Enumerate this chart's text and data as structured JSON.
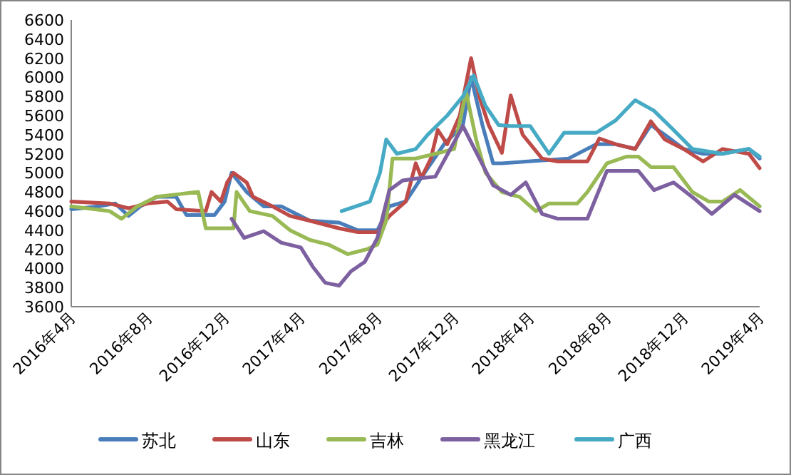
{
  "chart_data": {
    "type": "line",
    "legend": "bottom",
    "grid": false,
    "xlim": [
      "2016-04",
      "2019-04"
    ],
    "xticks": [
      {
        "value": "2016-04",
        "label": "2016年4月"
      },
      {
        "value": "2016-08",
        "label": "2016年8月"
      },
      {
        "value": "2016-12",
        "label": "2016年12月"
      },
      {
        "value": "2017-04",
        "label": "2017年4月"
      },
      {
        "value": "2017-08",
        "label": "2017年8月"
      },
      {
        "value": "2017-12",
        "label": "2017年12月"
      },
      {
        "value": "2018-04",
        "label": "2018年4月"
      },
      {
        "value": "2018-08",
        "label": "2018年8月"
      },
      {
        "value": "2018-12",
        "label": "2018年12月"
      },
      {
        "value": "2019-04",
        "label": "2019年4月"
      }
    ],
    "ylim": [
      3600,
      6600
    ],
    "yticks": [
      3600,
      3800,
      4000,
      4200,
      4400,
      4600,
      4800,
      5000,
      5200,
      5400,
      5600,
      5800,
      6000,
      6200,
      6400,
      6600
    ],
    "series": [
      {
        "name": "苏北",
        "color": "#4a7ebb",
        "x": [
          "2016-04-01",
          "2016-05-15",
          "2016-06-10",
          "2016-07-01",
          "2016-07-20",
          "2016-08-15",
          "2016-09-15",
          "2016-10-01",
          "2016-11-15",
          "2016-12-01",
          "2016-12-12",
          "2017-01-05",
          "2017-02-01",
          "2017-03-01",
          "2017-04-15",
          "2017-06-01",
          "2017-07-01",
          "2017-08-01",
          "2017-08-20",
          "2017-09-15",
          "2017-10-15",
          "2017-11-15",
          "2017-12-15",
          "2017-12-28",
          "2018-01-15",
          "2018-02-01",
          "2018-02-15",
          "2018-06-01",
          "2018-07-15",
          "2018-08-15",
          "2018-09-15",
          "2018-10-10",
          "2018-11-01",
          "2018-12-01",
          "2019-01-01",
          "2019-02-01",
          "2019-03-15",
          "2019-04-01"
        ],
        "values": [
          4620,
          4650,
          4680,
          4550,
          4650,
          4750,
          4750,
          4560,
          4560,
          4700,
          5000,
          4800,
          4650,
          4650,
          4500,
          4480,
          4400,
          4400,
          4650,
          4700,
          5000,
          5300,
          5500,
          6000,
          5500,
          5100,
          5100,
          5150,
          5300,
          5300,
          5250,
          5500,
          5400,
          5250,
          5200,
          5200,
          5250,
          5150
        ]
      },
      {
        "name": "山东",
        "color": "#be4b48",
        "x": [
          "2016-04-01",
          "2016-06-01",
          "2016-07-01",
          "2016-08-01",
          "2016-09-01",
          "2016-09-15",
          "2016-11-01",
          "2016-11-10",
          "2016-11-25",
          "2016-12-05",
          "2016-12-15",
          "2017-01-05",
          "2017-01-15",
          "2017-02-15",
          "2017-03-15",
          "2017-04-15",
          "2017-06-01",
          "2017-07-01",
          "2017-08-01",
          "2017-08-20",
          "2017-09-15",
          "2017-10-01",
          "2017-10-10",
          "2017-10-25",
          "2017-11-05",
          "2017-11-20",
          "2017-12-10",
          "2017-12-28",
          "2018-01-10",
          "2018-01-25",
          "2018-02-15",
          "2018-03-01",
          "2018-03-20",
          "2018-04-20",
          "2018-05-15",
          "2018-06-15",
          "2018-07-01",
          "2018-07-20",
          "2018-08-15",
          "2018-09-15",
          "2018-10-10",
          "2018-11-01",
          "2018-12-01",
          "2019-01-01",
          "2019-02-01",
          "2019-03-15",
          "2019-04-01"
        ],
        "values": [
          4700,
          4680,
          4630,
          4680,
          4700,
          4620,
          4600,
          4800,
          4700,
          4900,
          5000,
          4900,
          4750,
          4650,
          4550,
          4500,
          4420,
          4380,
          4380,
          4550,
          4700,
          5100,
          4950,
          5150,
          5450,
          5300,
          5600,
          6200,
          5800,
          5500,
          5210,
          5810,
          5400,
          5150,
          5120,
          5120,
          5120,
          5360,
          5300,
          5250,
          5540,
          5350,
          5250,
          5120,
          5250,
          5200,
          5050
        ]
      },
      {
        "name": "吉林",
        "color": "#98b954",
        "x": [
          "2016-04-01",
          "2016-06-01",
          "2016-06-20",
          "2016-07-15",
          "2016-08-15",
          "2016-10-20",
          "2016-11-01",
          "2016-12-15",
          "2016-12-20",
          "2017-01-10",
          "2017-02-15",
          "2017-03-15",
          "2017-04-15",
          "2017-05-15",
          "2017-06-15",
          "2017-07-15",
          "2017-08-01",
          "2017-08-15",
          "2017-08-25",
          "2017-10-01",
          "2017-11-01",
          "2017-12-01",
          "2017-12-20",
          "2018-01-05",
          "2018-01-20",
          "2018-02-15",
          "2018-03-15",
          "2018-04-10",
          "2018-05-01",
          "2018-06-15",
          "2018-07-01",
          "2018-08-01",
          "2018-09-01",
          "2018-09-20",
          "2018-10-10",
          "2018-11-15",
          "2018-12-15",
          "2019-01-10",
          "2019-02-01",
          "2019-03-01",
          "2019-04-01"
        ],
        "values": [
          4650,
          4600,
          4520,
          4650,
          4750,
          4800,
          4420,
          4420,
          4800,
          4600,
          4550,
          4400,
          4300,
          4250,
          4150,
          4200,
          4250,
          4500,
          5150,
          5150,
          5200,
          5250,
          5850,
          5350,
          5000,
          4800,
          4750,
          4600,
          4680,
          4680,
          4800,
          5100,
          5170,
          5170,
          5060,
          5060,
          4800,
          4700,
          4700,
          4820,
          4650
        ]
      },
      {
        "name": "黑龙江",
        "color": "#7d60a0",
        "x": [
          "2016-12-12",
          "2017-01-01",
          "2017-02-01",
          "2017-03-01",
          "2017-04-01",
          "2017-04-20",
          "2017-05-10",
          "2017-06-01",
          "2017-06-20",
          "2017-07-12",
          "2017-08-01",
          "2017-08-20",
          "2017-09-10",
          "2017-10-01",
          "2017-11-01",
          "2017-12-15",
          "2018-01-01",
          "2018-02-01",
          "2018-03-01",
          "2018-03-25",
          "2018-04-20",
          "2018-05-15",
          "2018-07-01",
          "2018-08-01",
          "2018-09-20",
          "2018-10-15",
          "2018-11-15",
          "2018-12-20",
          "2019-01-15",
          "2019-02-20",
          "2019-04-01"
        ],
        "values": [
          4520,
          4320,
          4390,
          4270,
          4220,
          4020,
          3850,
          3820,
          3970,
          4070,
          4320,
          4820,
          4920,
          4940,
          4960,
          5490,
          5270,
          4870,
          4770,
          4900,
          4570,
          4520,
          4520,
          5020,
          5020,
          4820,
          4900,
          4720,
          4570,
          4770,
          4600
        ]
      },
      {
        "name": "广西",
        "color": "#46aac5",
        "x": [
          "2017-06-05",
          "2017-07-20",
          "2017-08-05",
          "2017-08-15",
          "2017-09-01",
          "2017-10-01",
          "2017-10-20",
          "2017-11-20",
          "2017-12-15",
          "2018-01-01",
          "2018-01-20",
          "2018-02-10",
          "2018-03-01",
          "2018-04-01",
          "2018-05-01",
          "2018-05-25",
          "2018-07-15",
          "2018-08-15",
          "2018-09-15",
          "2018-10-15",
          "2018-11-15",
          "2018-12-15",
          "2019-02-01",
          "2019-03-15",
          "2019-04-01"
        ],
        "values": [
          4600,
          4700,
          5000,
          5350,
          5200,
          5250,
          5400,
          5600,
          5800,
          6020,
          5700,
          5500,
          5490,
          5490,
          5200,
          5420,
          5420,
          5550,
          5760,
          5650,
          5450,
          5250,
          5200,
          5250,
          5170
        ]
      }
    ]
  }
}
